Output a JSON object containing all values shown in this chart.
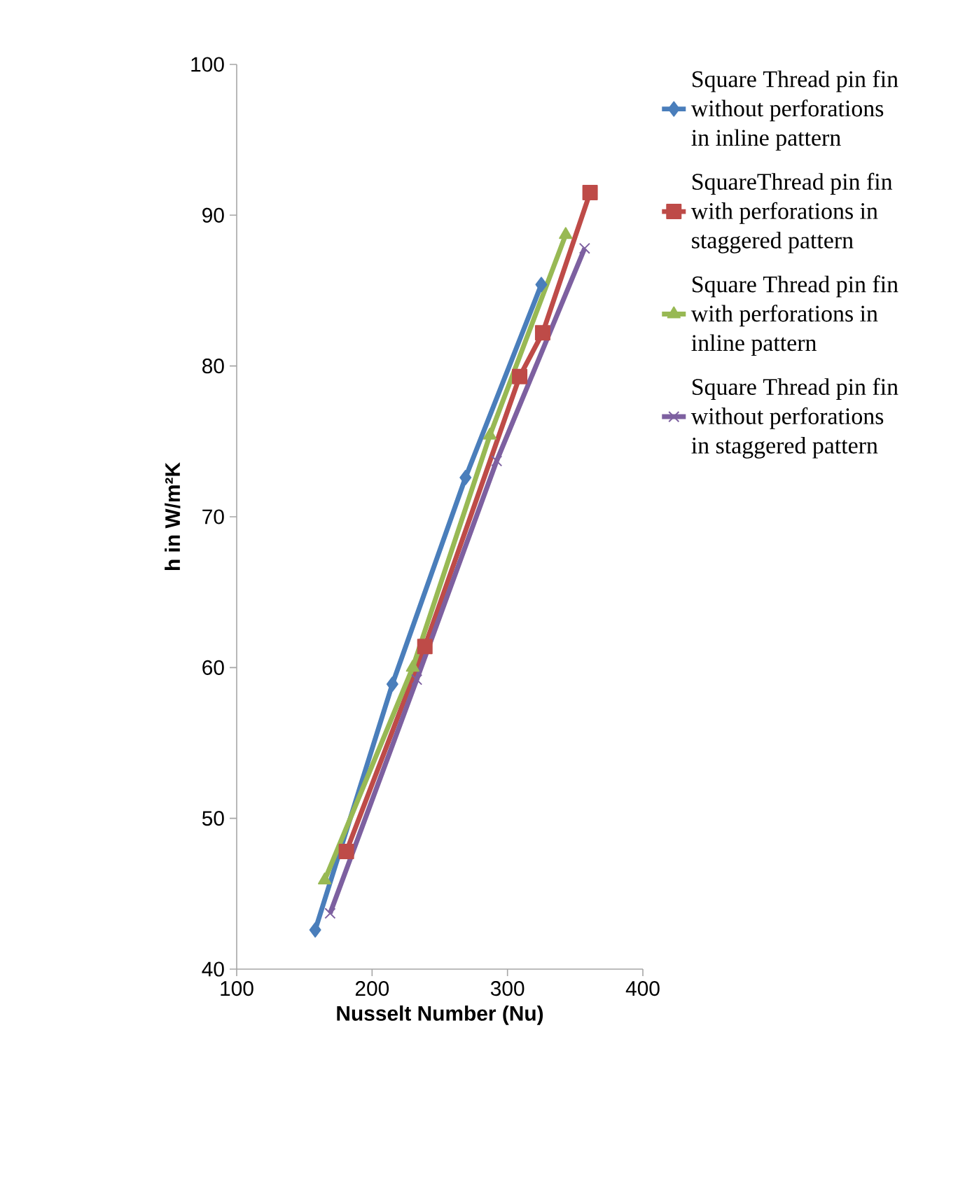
{
  "chart_data": {
    "type": "line",
    "xlabel": "Nusselt Number (Nu)",
    "ylabel": "h in W/m²K",
    "xlim": [
      100,
      400
    ],
    "xticks": [
      100,
      200,
      300,
      400
    ],
    "ylim": [
      40,
      100
    ],
    "yticks": [
      40,
      50,
      60,
      70,
      80,
      90,
      100
    ],
    "grid": false,
    "legend": "right",
    "line_style": "solid",
    "series": [
      {
        "name": "Square Thread pin fin without perforations in inline pattern",
        "color": "#4a7ebb",
        "marker": "diamond",
        "x": [
          158,
          215,
          269,
          325
        ],
        "values": [
          42.6,
          58.9,
          72.6,
          85.4
        ]
      },
      {
        "name": "SquareThread pin fin with perforations in staggered pattern",
        "color": "#be4b48",
        "marker": "square",
        "x": [
          181,
          239,
          309,
          326,
          361
        ],
        "values": [
          47.8,
          61.4,
          79.3,
          82.2,
          91.5
        ]
      },
      {
        "name": "Square Thread pin fin with perforations in inline pattern",
        "color": "#98b954",
        "marker": "triangle",
        "x": [
          165,
          230,
          287,
          343
        ],
        "values": [
          45.9,
          60.0,
          75.4,
          88.7
        ]
      },
      {
        "name": "Square Thread pin fin without perforations in staggered pattern",
        "color": "#7d60a0",
        "marker": "cross",
        "x": [
          169,
          233,
          292,
          357
        ],
        "values": [
          43.7,
          59.2,
          73.7,
          87.8
        ]
      }
    ]
  }
}
